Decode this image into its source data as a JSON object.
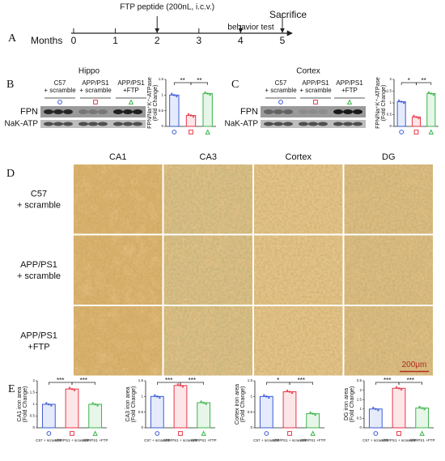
{
  "panel_labels": [
    "A",
    "B",
    "C",
    "D",
    "E"
  ],
  "timeline": {
    "axis_label": "Months",
    "ticks": [
      0,
      1,
      2,
      3,
      4,
      5
    ],
    "events": [
      {
        "label": "FTP peptide (200nL, i.c.v.)",
        "month": 2
      },
      {
        "label": "behavior test",
        "month": 4
      },
      {
        "label": "Sacrifice",
        "month": 5
      }
    ]
  },
  "blots": [
    {
      "title": "Hippo",
      "lanes": [
        [
          "C57",
          "+ scramble"
        ],
        [
          "APP/PS1",
          "+ scramble"
        ],
        [
          "APP/PS1",
          "+FTP"
        ]
      ],
      "rows": [
        "FPN",
        "NaK-ATP"
      ]
    },
    {
      "title": "Cortex",
      "lanes": [
        [
          "C57",
          "+ scramble"
        ],
        [
          "APP/PS1",
          "+ scramble"
        ],
        [
          "APP/PS1",
          "+FTP"
        ]
      ],
      "rows": [
        "FPN",
        "NaK-ATP"
      ]
    }
  ],
  "histology": {
    "columns": [
      "CA1",
      "CA3",
      "Cortex",
      "DG"
    ],
    "rows": [
      [
        "C57",
        "+ scramble"
      ],
      [
        "APP/PS1",
        "+ scramble"
      ],
      [
        "APP/PS1",
        "+FTP"
      ]
    ],
    "scale_bar": "200μm"
  },
  "chart_data": [
    {
      "type": "bar",
      "ylabel": [
        "FPN/Na⁺K⁺-ATPase",
        "(Fold Change)"
      ],
      "categories": [
        null,
        null,
        null
      ],
      "values": [
        1.0,
        0.35,
        1.05
      ],
      "colors": [
        "#3b5bd6",
        "#e8374a",
        "#3cb44b"
      ],
      "ylim": [
        0,
        1.5
      ],
      "yticks": [
        0,
        0.5,
        1,
        1.5
      ],
      "annotations": [
        "**",
        "**"
      ]
    },
    {
      "type": "bar",
      "ylabel": [
        "FPN/Na⁺K⁺-ATPase",
        "(Fold Change)"
      ],
      "categories": [
        null,
        null,
        null
      ],
      "values": [
        1.05,
        0.4,
        1.4
      ],
      "colors": [
        "#3b5bd6",
        "#e8374a",
        "#3cb44b"
      ],
      "ylim": [
        0,
        2
      ],
      "yticks": [
        0,
        0.5,
        1,
        1.5,
        2
      ],
      "annotations": [
        "*",
        "**"
      ]
    },
    {
      "type": "bar",
      "ylabel": [
        "CA1 iron area",
        "(Fold Change)"
      ],
      "categories": [
        "C57 + scramble",
        "APP/PS1 + scramble",
        "APP/PS1 +FTP"
      ],
      "values": [
        1.0,
        1.65,
        1.0
      ],
      "colors": [
        "#3b5bd6",
        "#e8374a",
        "#3cb44b"
      ],
      "ylim": [
        0,
        2
      ],
      "yticks": [
        0,
        0.5,
        1,
        1.5,
        2
      ],
      "annotations": [
        "***",
        "***"
      ]
    },
    {
      "type": "bar",
      "ylabel": [
        "CA3 iron area",
        "(Fold Change)"
      ],
      "categories": [
        "C57 + scramble",
        "APP/PS1 + scramble",
        "APP/PS1 +FTP"
      ],
      "values": [
        1.0,
        1.35,
        0.8
      ],
      "colors": [
        "#3b5bd6",
        "#e8374a",
        "#3cb44b"
      ],
      "ylim": [
        0,
        1.5
      ],
      "yticks": [
        0,
        0.5,
        1,
        1.5
      ],
      "annotations": [
        "***",
        "***"
      ]
    },
    {
      "type": "bar",
      "ylabel": [
        "Cortex iron area",
        "(Fold Change)"
      ],
      "categories": [
        "C57 + scramble",
        "APP/PS1 + scramble",
        "APP/PS1 +FTP"
      ],
      "values": [
        1.0,
        1.15,
        0.45
      ],
      "colors": [
        "#3b5bd6",
        "#e8374a",
        "#3cb44b"
      ],
      "ylim": [
        0,
        1.5
      ],
      "yticks": [
        0,
        0.5,
        1,
        1.5
      ],
      "annotations": [
        "*",
        "***"
      ]
    },
    {
      "type": "bar",
      "ylabel": [
        "DG iron area",
        "(Fold Change)"
      ],
      "categories": [
        "C57 + scramble",
        "APP/PS1 + scramble",
        "APP/PS1 +FTP"
      ],
      "values": [
        1.0,
        2.1,
        1.05
      ],
      "colors": [
        "#3b5bd6",
        "#e8374a",
        "#3cb44b"
      ],
      "ylim": [
        0,
        2.5
      ],
      "yticks": [
        0,
        0.5,
        1,
        1.5,
        2,
        2.5
      ],
      "annotations": [
        "***",
        "***"
      ]
    }
  ]
}
